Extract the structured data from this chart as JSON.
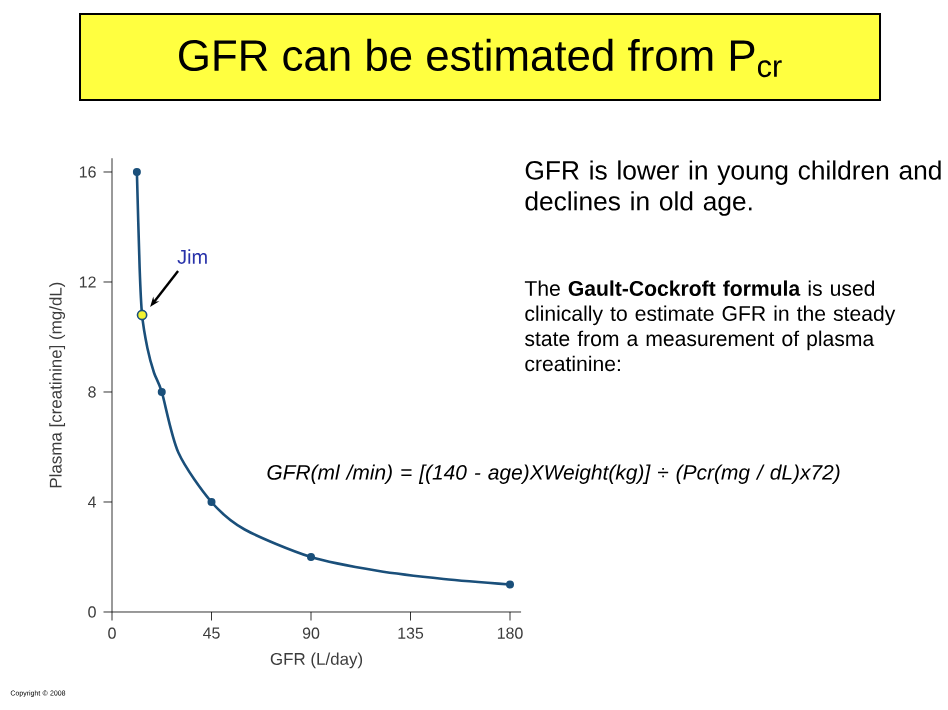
{
  "chart_data": {
    "type": "line",
    "title": "GFR can be estimated from P$_{cr}$",
    "xlabel": "GFR (L/day)",
    "ylabel": "Plasma [creatinine] (mg/dL)",
    "xlim": [
      0,
      185
    ],
    "ylim": [
      0,
      16.5
    ],
    "xticks": [
      0,
      45,
      90,
      135,
      180
    ],
    "yticks": [
      0,
      4,
      8,
      12,
      16
    ],
    "grid": false,
    "series": [
      {
        "color": "#1a4f7a",
        "marker": "none",
        "x": [
          11.25,
          12.5,
          13.6,
          16,
          19,
          22.5,
          30,
          45,
          60,
          90,
          120,
          150,
          180
        ],
        "values": [
          16,
          12.5,
          10.8,
          9.6,
          8.7,
          8,
          5.8,
          4,
          3,
          2,
          1.5,
          1.2,
          1
        ]
      },
      {
        "type": "scatter",
        "color": "#1a4f7a",
        "marker": "circle",
        "x": [
          11.25,
          22.5,
          45,
          90,
          180
        ],
        "values": [
          16,
          8,
          4,
          2,
          1
        ]
      },
      {
        "type": "scatter",
        "color": "#f2f230",
        "marker": "circle",
        "x": [
          13.6
        ],
        "values": [
          10.8
        ]
      }
    ],
    "annotations": [
      "GFR is lower in young children and declines in old age.",
      "The **Gault-Cockroft formula** is used clinically to estimate GFR in the steady state from a measurement of plasma creatinine:",
      "GFR(ml /min) = [(140 - age)XWeight(kg)] ÷ (Pcr(mg / dL)x72)",
      "Copyright © 2008",
      {
        "text": "Jim",
        "x": 13.6,
        "y": 10.8
      }
    ]
  }
}
